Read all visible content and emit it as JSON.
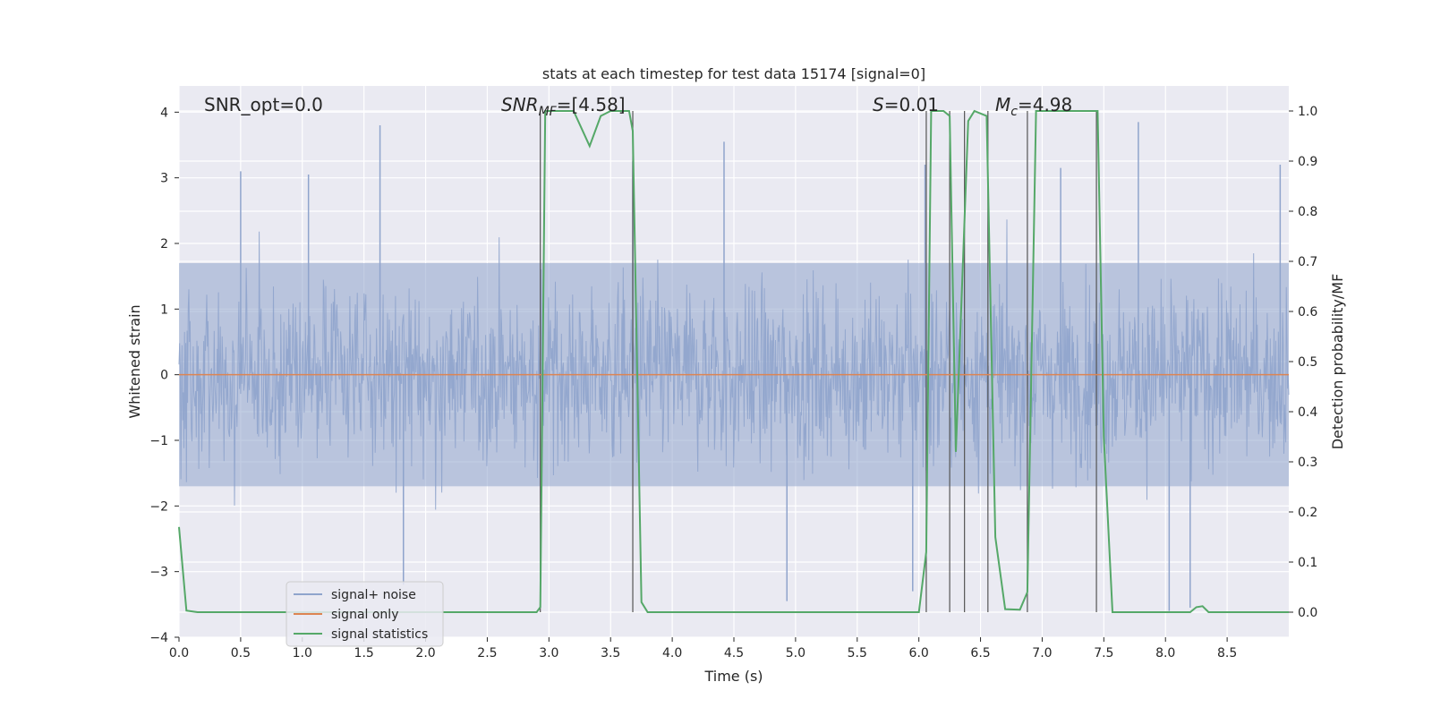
{
  "chart_data": {
    "type": "line",
    "title": "stats at each timestep for test data 15174 [signal=0]",
    "xlabel": "Time (s)",
    "ylabel": "Whitened strain",
    "y2label": "Detection probability/MF",
    "xlim": [
      0.0,
      9.0
    ],
    "ylim": [
      -4.0,
      4.4
    ],
    "y2lim": [
      -0.05,
      1.05
    ],
    "xticks": [
      "0.0",
      "0.5",
      "1.0",
      "1.5",
      "2.0",
      "2.5",
      "3.0",
      "3.5",
      "4.0",
      "4.5",
      "5.0",
      "5.5",
      "6.0",
      "6.5",
      "7.0",
      "7.5",
      "8.0",
      "8.5"
    ],
    "yticks": [
      "4",
      "3",
      "2",
      "1",
      "0",
      "−1",
      "−2",
      "−3",
      "−4"
    ],
    "y2ticks": [
      "1.0",
      "0.9",
      "0.8",
      "0.7",
      "0.6",
      "0.5",
      "0.4",
      "0.3",
      "0.2",
      "0.1",
      "0.0"
    ],
    "grid": true,
    "legend_position": "lower-left",
    "annotations": {
      "snr_opt": "SNR_opt=0.0",
      "snr_mf_sym": "SNR",
      "snr_mf_sub": "MF",
      "snr_mf_val": "=[4.58]",
      "s_sym": "S",
      "s_val": "=0.01",
      "mc_sym": "M",
      "mc_sub": "c",
      "mc_val": "=4.98"
    },
    "series": [
      {
        "name": "signal+ noise",
        "color": "#8fa4cc",
        "description_range": [
          -3.7,
          3.8
        ],
        "peaks": [
          {
            "x": 0.5,
            "y": 3.1
          },
          {
            "x": 1.05,
            "y": 3.05
          },
          {
            "x": 1.63,
            "y": 3.8
          },
          {
            "x": 1.82,
            "y": -3.2
          },
          {
            "x": 3.68,
            "y": 3.25
          },
          {
            "x": 4.42,
            "y": 3.55
          },
          {
            "x": 4.93,
            "y": -3.45
          },
          {
            "x": 5.95,
            "y": -3.3
          },
          {
            "x": 6.05,
            "y": 3.2
          },
          {
            "x": 7.15,
            "y": 3.15
          },
          {
            "x": 7.78,
            "y": 3.85
          },
          {
            "x": 8.03,
            "y": -3.6
          },
          {
            "x": 8.2,
            "y": -3.55
          },
          {
            "x": 8.93,
            "y": 3.2
          }
        ]
      },
      {
        "name": "signal only",
        "color": "#dd8452",
        "x": [
          0.0,
          9.0
        ],
        "y": [
          0.0,
          0.0
        ]
      },
      {
        "name": "signal statistics",
        "color": "#55a868",
        "x": [
          0.0,
          0.06,
          0.15,
          2.9,
          2.93,
          2.97,
          3.0,
          3.2,
          3.33,
          3.42,
          3.5,
          3.6,
          3.65,
          3.68,
          3.75,
          3.8,
          6.0,
          6.06,
          6.1,
          6.2,
          6.25,
          6.3,
          6.4,
          6.45,
          6.55,
          6.62,
          6.7,
          6.82,
          6.88,
          6.95,
          7.0,
          7.45,
          7.5,
          7.57,
          8.2,
          8.25,
          8.3,
          8.35,
          9.0
        ],
        "y": [
          0.17,
          0.003,
          0.0,
          0.0,
          0.01,
          1.0,
          1.0,
          1.0,
          0.93,
          0.99,
          1.0,
          1.0,
          1.0,
          0.96,
          0.02,
          0.0,
          0.0,
          0.12,
          1.0,
          1.0,
          0.99,
          0.32,
          0.98,
          1.0,
          0.99,
          0.15,
          0.006,
          0.005,
          0.04,
          1.0,
          1.0,
          1.0,
          0.35,
          0.0,
          0.0,
          0.01,
          0.012,
          0.0,
          0.0
        ]
      }
    ],
    "vlines": [
      2.93,
      3.68,
      6.06,
      6.25,
      6.37,
      6.56,
      6.88,
      7.44
    ]
  }
}
